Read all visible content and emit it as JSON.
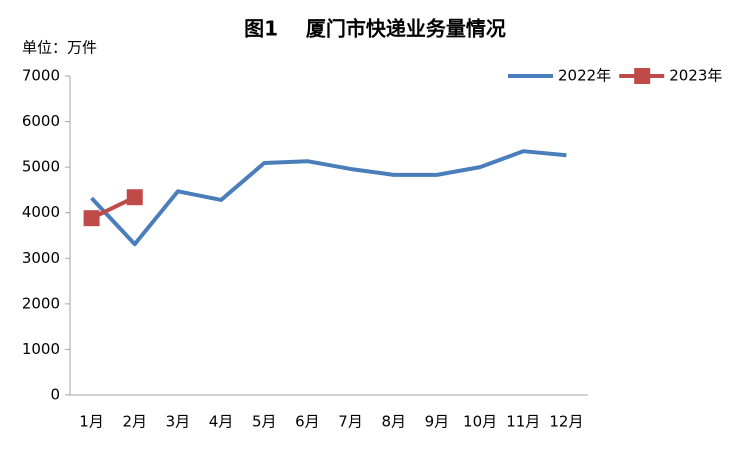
{
  "chart_data": {
    "type": "line",
    "title": "图1    厦门市快递业务量情况",
    "y_unit": "单位：万件",
    "categories": [
      "1月",
      "2月",
      "3月",
      "4月",
      "5月",
      "6月",
      "7月",
      "8月",
      "9月",
      "10月",
      "11月",
      "12月"
    ],
    "series": [
      {
        "name": "2022年",
        "color": "#4a7ebb",
        "marker": "none",
        "values": [
          4320,
          3310,
          4470,
          4280,
          5090,
          5130,
          4960,
          4830,
          4830,
          5000,
          5350,
          5260
        ]
      },
      {
        "name": "2023年",
        "color": "#be4b48",
        "marker": "square",
        "values": [
          3880,
          4340,
          null,
          null,
          null,
          null,
          null,
          null,
          null,
          null,
          null,
          null
        ]
      }
    ],
    "ylim": [
      0,
      7000
    ],
    "yticks": [
      0,
      1000,
      2000,
      3000,
      4000,
      5000,
      6000,
      7000
    ],
    "grid": false,
    "legend": "top-right"
  }
}
